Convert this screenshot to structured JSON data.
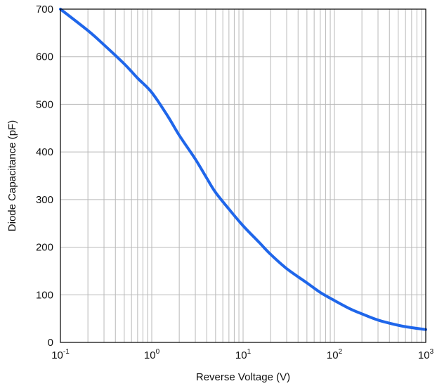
{
  "chart_data": {
    "type": "line",
    "title": "",
    "xlabel": "Reverse Voltage (V)",
    "ylabel": "Diode Capacitance (pF)",
    "x_scale": "log",
    "xlim": [
      0.1,
      1000
    ],
    "ylim": [
      0,
      700
    ],
    "x_ticks": [
      {
        "value": 0.1,
        "base": "10",
        "exp": "-1"
      },
      {
        "value": 1,
        "base": "10",
        "exp": "0"
      },
      {
        "value": 10,
        "base": "10",
        "exp": "1"
      },
      {
        "value": 100,
        "base": "10",
        "exp": "2"
      },
      {
        "value": 1000,
        "base": "10",
        "exp": "3"
      }
    ],
    "y_ticks": [
      "0",
      "100",
      "200",
      "300",
      "400",
      "500",
      "600",
      "700"
    ],
    "grid": true,
    "colors": {
      "line": "#1f66ea",
      "grid": "#b9b9b9",
      "frame": "#000000"
    },
    "series": [
      {
        "x": [
          0.1,
          0.2,
          0.3,
          0.5,
          0.7,
          1,
          1.5,
          2,
          3,
          4,
          5,
          7,
          10,
          15,
          20,
          30,
          50,
          70,
          100,
          150,
          200,
          300,
          500,
          700,
          1000
        ],
        "y": [
          700,
          655,
          625,
          585,
          555,
          525,
          475,
          435,
          385,
          345,
          315,
          280,
          245,
          210,
          185,
          155,
          125,
          105,
          88,
          70,
          60,
          47,
          36,
          31,
          27
        ]
      }
    ]
  }
}
